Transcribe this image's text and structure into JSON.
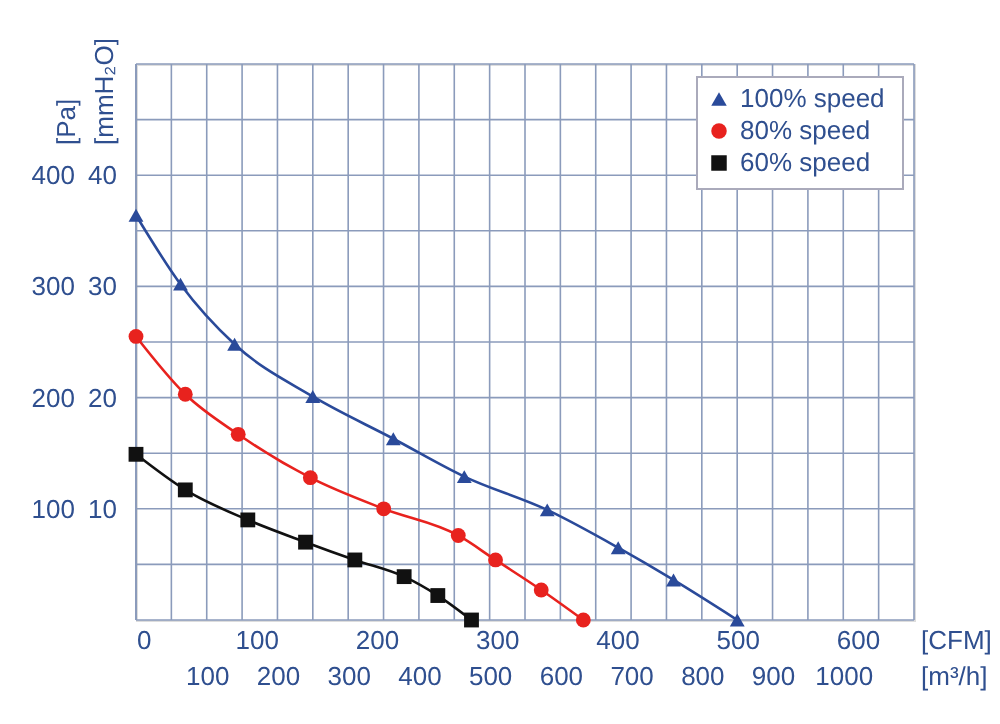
{
  "chart_data": {
    "type": "line",
    "xlabel": "[CFM]",
    "ylabel": "[Pa]",
    "y2label": "[mmH₂O]",
    "x2label": "[m³/h]",
    "xlim": [
      0,
      647
    ],
    "xticks": [
      0,
      100,
      200,
      300,
      400,
      500,
      600
    ],
    "x2lim": [
      0,
      1100
    ],
    "x2ticks": [
      {
        "value": 0,
        "label": null
      },
      {
        "value": 50,
        "label": null
      },
      100,
      {
        "value": 150,
        "label": null
      },
      200,
      {
        "value": 250,
        "label": null
      },
      300,
      {
        "value": 350,
        "label": null
      },
      400,
      {
        "value": 450,
        "label": null
      },
      500,
      {
        "value": 550,
        "label": null
      },
      600,
      {
        "value": 650,
        "label": null
      },
      700,
      {
        "value": 750,
        "label": null
      },
      800,
      {
        "value": 850,
        "label": null
      },
      900,
      {
        "value": 950,
        "label": null
      },
      1000,
      {
        "value": 1050,
        "label": null
      },
      {
        "value": 1100,
        "label": null
      }
    ],
    "ylim": [
      0,
      500
    ],
    "yticks": [
      {
        "value": 0,
        "label": null
      },
      {
        "value": 50,
        "label": null
      },
      100,
      {
        "value": 150,
        "label": null
      },
      200,
      {
        "value": 250,
        "label": null
      },
      300,
      {
        "value": 350,
        "label": null
      },
      400,
      {
        "value": 450,
        "label": null
      },
      {
        "value": 500,
        "label": null
      }
    ],
    "y2lim": [
      0,
      50
    ],
    "y2ticks": [
      10,
      20,
      30,
      40
    ],
    "grid": true,
    "legend": "top right",
    "line_style": "solid",
    "series": [
      {
        "name": "100%  speed",
        "color": "#2a4a9a",
        "marker": "triangle",
        "x": [
          0,
          37,
          82,
          147,
          214,
          273,
          342,
          401,
          447,
          500
        ],
        "values": [
          364,
          302,
          248,
          201,
          163,
          129,
          99,
          65,
          36,
          0
        ]
      },
      {
        "name": "80%  speed",
        "color": "#e8221e",
        "marker": "circle",
        "x": [
          0,
          41,
          85,
          145,
          206,
          268,
          299,
          337,
          372
        ],
        "values": [
          255,
          203,
          167,
          128,
          100,
          76,
          54,
          27,
          0
        ]
      },
      {
        "name": "60%  speed",
        "color": "#111111",
        "marker": "square",
        "x": [
          0,
          41,
          93,
          141,
          182,
          223,
          251,
          279
        ],
        "values": [
          149,
          117,
          90,
          70,
          54,
          39,
          22,
          0
        ]
      }
    ]
  }
}
